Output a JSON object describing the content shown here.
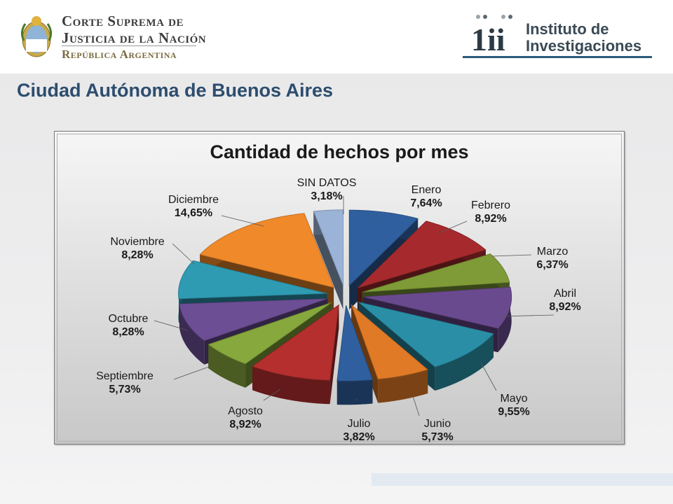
{
  "header": {
    "org_line1": "Corte Suprema de",
    "org_line2": "Justicia de la Nación",
    "org_line3": "República Argentina",
    "institute_line1": "Instituto de",
    "institute_line2": "Investigaciones",
    "institute_mark": "1ii"
  },
  "page_title": "Ciudad Autónoma de Buenos Aires",
  "chart_data": {
    "type": "pie",
    "title": "Cantidad de hechos por mes",
    "slices": [
      {
        "label": "Enero",
        "value": 7.64,
        "value_label": "7,64%",
        "color": "#2f5f9e"
      },
      {
        "label": "Febrero",
        "value": 8.92,
        "value_label": "8,92%",
        "color": "#a62a2d"
      },
      {
        "label": "Marzo",
        "value": 6.37,
        "value_label": "6,37%",
        "color": "#7f9b37"
      },
      {
        "label": "Abril",
        "value": 8.92,
        "value_label": "8,92%",
        "color": "#6a4a8e"
      },
      {
        "label": "Mayo",
        "value": 9.55,
        "value_label": "9,55%",
        "color": "#2a8fa6"
      },
      {
        "label": "Junio",
        "value": 5.73,
        "value_label": "5,73%",
        "color": "#e07a26"
      },
      {
        "label": "Julio",
        "value": 3.82,
        "value_label": "3,82%",
        "color": "#2f5f9e"
      },
      {
        "label": "Agosto",
        "value": 8.92,
        "value_label": "8,92%",
        "color": "#b52f2f"
      },
      {
        "label": "Septiembre",
        "value": 5.73,
        "value_label": "5,73%",
        "color": "#86a83c"
      },
      {
        "label": "Octubre",
        "value": 8.28,
        "value_label": "8,28%",
        "color": "#6c4e95"
      },
      {
        "label": "Noviembre",
        "value": 8.28,
        "value_label": "8,28%",
        "color": "#2e9bb3"
      },
      {
        "label": "Diciembre",
        "value": 14.65,
        "value_label": "14,65%",
        "color": "#f0892a"
      },
      {
        "label": "SIN DATOS",
        "value": 3.18,
        "value_label": "3,18%",
        "color": "#9bb3d6"
      }
    ],
    "legend": "none",
    "data_labels": "outside, with leader lines"
  }
}
